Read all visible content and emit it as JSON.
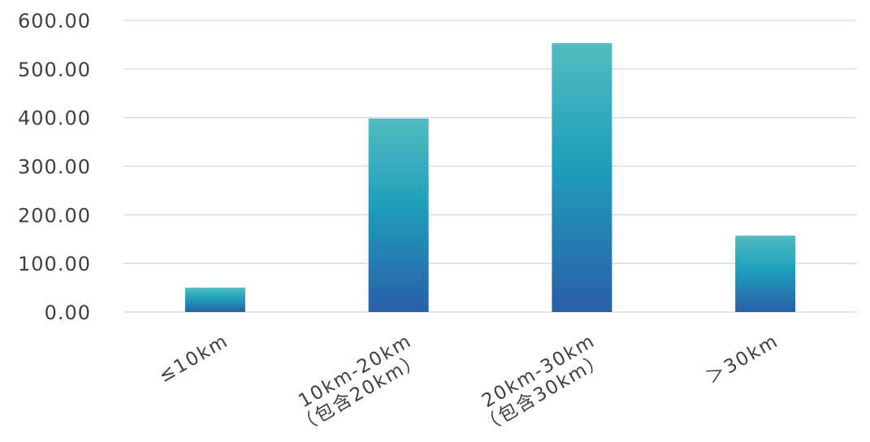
{
  "chart_data": {
    "type": "bar",
    "title": "",
    "xlabel": "",
    "ylabel": "",
    "categories": [
      [
        "≤10km"
      ],
      [
        "10km-20km",
        "（包含20km）"
      ],
      [
        "20km-30km",
        "（包含30km）"
      ],
      [
        "＞30km"
      ]
    ],
    "values": [
      50,
      398,
      553,
      157
    ],
    "ylim": [
      0,
      600
    ],
    "yticks": [
      "0.00",
      "100.00",
      "200.00",
      "300.00",
      "400.00",
      "500.00",
      "600.00"
    ],
    "grid": true,
    "legend": "none",
    "colors": {
      "bar_top": "#52bcc0",
      "bar_mid": "#1f9fbb",
      "bar_bottom": "#2a5ea9",
      "grid": "#d9d9d9",
      "text": "#3f3f3f"
    }
  }
}
